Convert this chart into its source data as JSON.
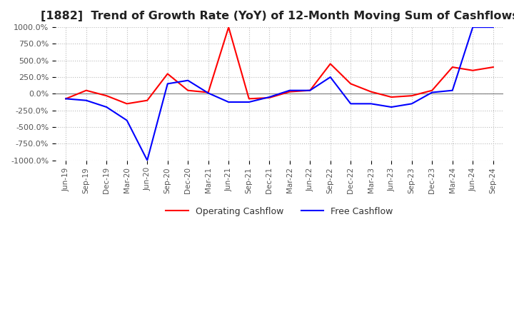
{
  "title": "[1882]  Trend of Growth Rate (YoY) of 12-Month Moving Sum of Cashflows",
  "title_fontsize": 11.5,
  "ylim": [
    -1000,
    1000
  ],
  "yticks": [
    -1000,
    -750,
    -500,
    -250,
    0,
    250,
    500,
    750,
    1000
  ],
  "background_color": "#ffffff",
  "plot_bg_color": "#ffffff",
  "grid_color": "#bbbbbb",
  "operating_color": "#ff0000",
  "free_color": "#0000ff",
  "legend_labels": [
    "Operating Cashflow",
    "Free Cashflow"
  ],
  "x_labels": [
    "Jun-19",
    "Sep-19",
    "Dec-19",
    "Mar-20",
    "Jun-20",
    "Sep-20",
    "Dec-20",
    "Mar-21",
    "Jun-21",
    "Sep-21",
    "Dec-21",
    "Mar-22",
    "Jun-22",
    "Sep-22",
    "Dec-22",
    "Mar-23",
    "Jun-23",
    "Sep-23",
    "Dec-23",
    "Mar-24",
    "Jun-24",
    "Sep-24"
  ],
  "operating_cashflow": [
    -75,
    50,
    -30,
    -150,
    -100,
    300,
    50,
    20,
    1000,
    -75,
    -60,
    30,
    50,
    450,
    150,
    30,
    -50,
    -30,
    50,
    400,
    350,
    400
  ],
  "free_cashflow": [
    -75,
    -100,
    -200,
    -400,
    -1000,
    150,
    200,
    10,
    -125,
    -125,
    -50,
    50,
    50,
    250,
    -150,
    -150,
    -200,
    -150,
    20,
    50,
    1000,
    1000
  ]
}
